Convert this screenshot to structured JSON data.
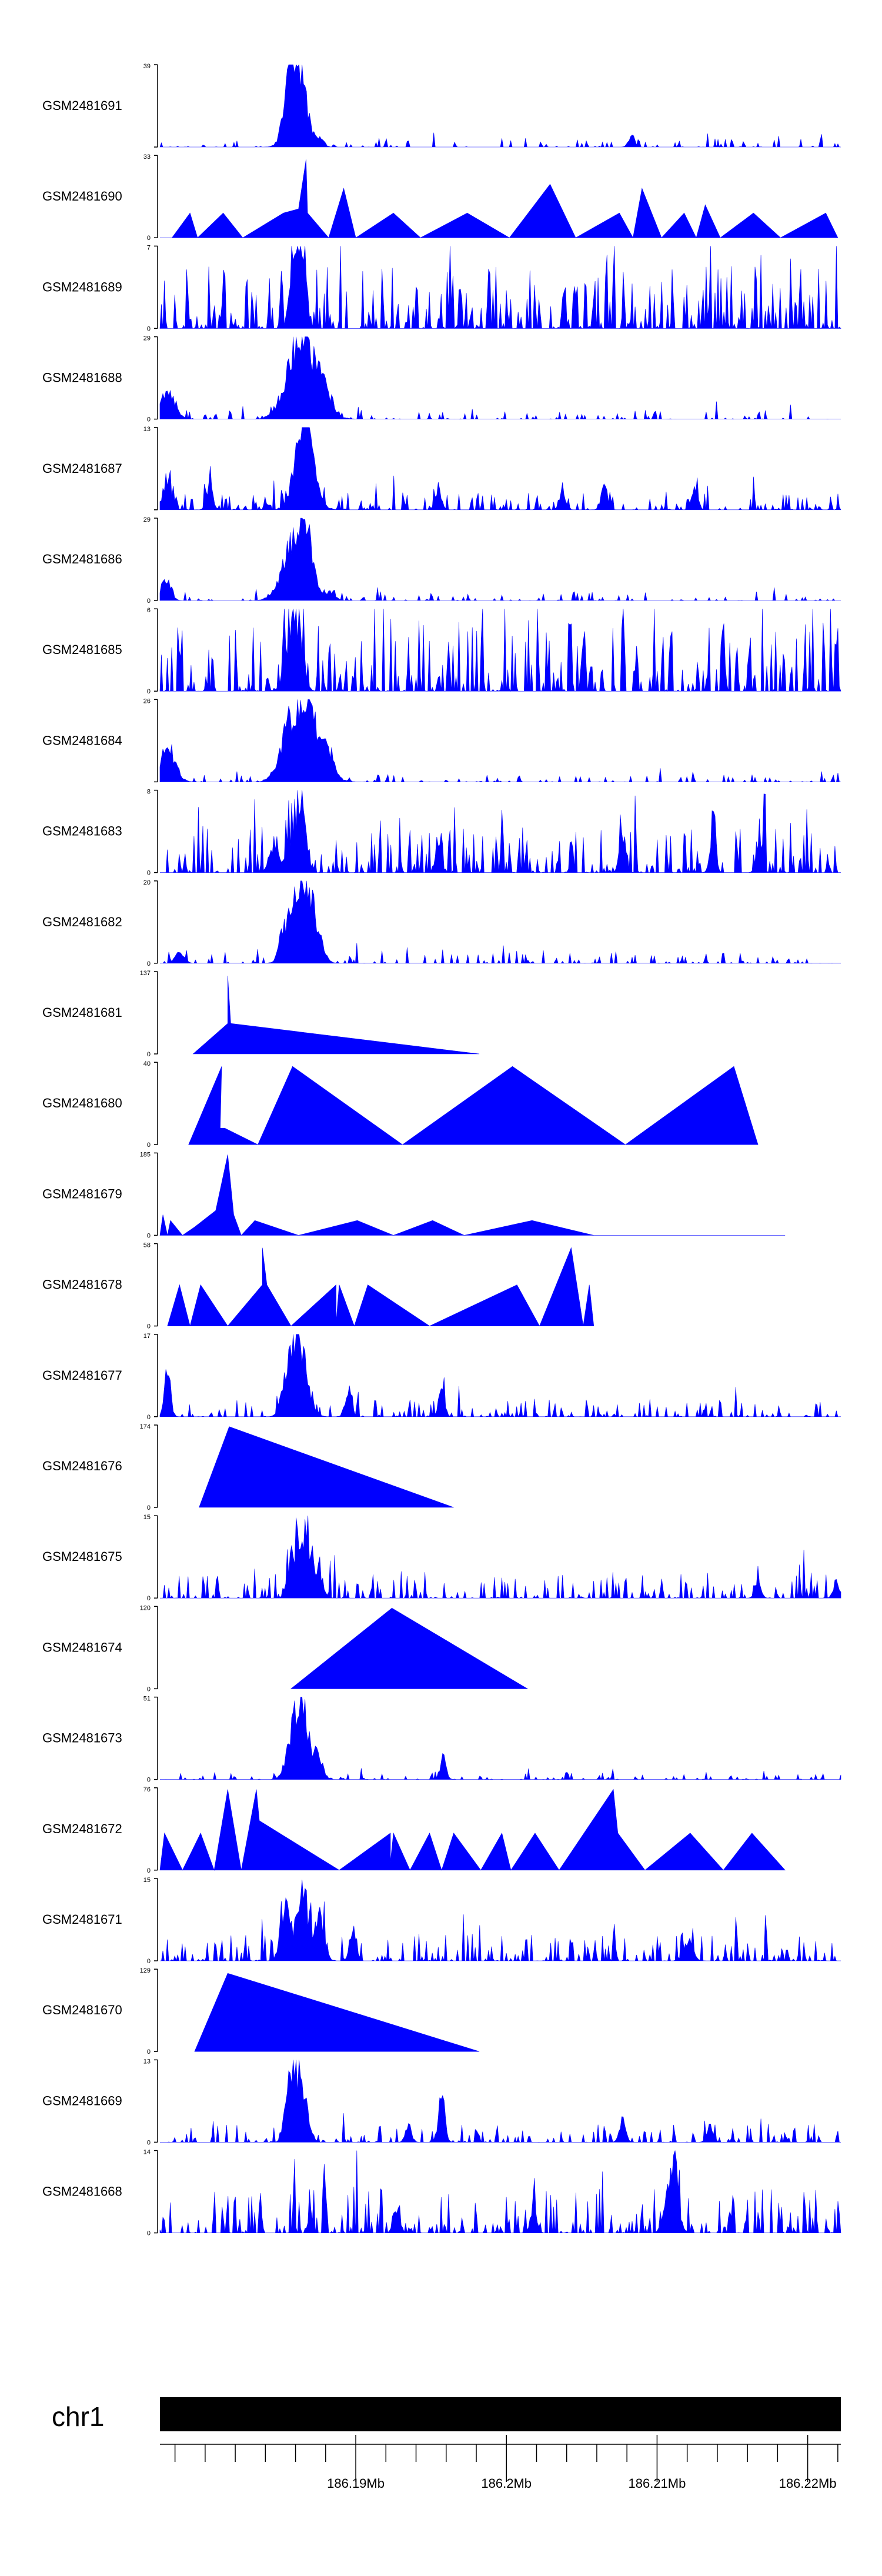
{
  "chart_data": {
    "type": "area",
    "title": "",
    "color": "#0000ff",
    "chromosome": "chr1",
    "x_unit": "Mb",
    "xlim": [
      186.177,
      186.2222
    ],
    "x_ticks": [
      {
        "value": 186.19,
        "label": "186.19Mb"
      },
      {
        "value": 186.2,
        "label": "186.2Mb"
      },
      {
        "value": 186.21,
        "label": "186.21Mb"
      },
      {
        "value": 186.22,
        "label": "186.22Mb"
      }
    ],
    "x_minor_tick_step": 0.002,
    "tracks": [
      {
        "name": "GSM2481691",
        "ymax": 39,
        "ymin_label": "",
        "style": "signal",
        "seed": 11,
        "noise": 0.05,
        "density": 0.22,
        "peaks": [
          [
            186.1859,
            1.0,
            0.0005
          ],
          [
            186.1863,
            0.55,
            0.0006
          ],
          [
            186.1855,
            0.3,
            0.0003
          ],
          [
            186.1877,
            0.12,
            0.0002
          ],
          [
            186.2083,
            0.18,
            0.0002
          ]
        ]
      },
      {
        "name": "GSM2481690",
        "ymax": 33,
        "ymin_label": "0",
        "style": "tri",
        "seed": 12,
        "points": [
          [
            186.177,
            0
          ],
          [
            186.1778,
            0
          ],
          [
            186.179,
            0.3
          ],
          [
            186.1795,
            0
          ],
          [
            186.1812,
            0.3
          ],
          [
            186.1825,
            0
          ],
          [
            186.1852,
            0.3
          ],
          [
            186.1862,
            0.35
          ],
          [
            186.1867,
            0.95
          ],
          [
            186.1868,
            0.3
          ],
          [
            186.1882,
            0
          ],
          [
            186.1892,
            0.6
          ],
          [
            186.19,
            0
          ],
          [
            186.1925,
            0.3
          ],
          [
            186.1943,
            0
          ],
          [
            186.1974,
            0.3
          ],
          [
            186.2002,
            0
          ],
          [
            186.2029,
            0.65
          ],
          [
            186.2046,
            0
          ],
          [
            186.2075,
            0.3
          ],
          [
            186.2084,
            0
          ],
          [
            186.209,
            0.6
          ],
          [
            186.2103,
            0
          ],
          [
            186.2118,
            0.3
          ],
          [
            186.2126,
            0
          ],
          [
            186.2132,
            0.4
          ],
          [
            186.2142,
            0
          ],
          [
            186.2164,
            0.3
          ],
          [
            186.2182,
            0
          ],
          [
            186.2212,
            0.3
          ],
          [
            186.222,
            0
          ]
        ]
      },
      {
        "name": "GSM2481689",
        "ymax": 7,
        "ymin_label": "0",
        "style": "signal",
        "seed": 13,
        "noise": 0.35,
        "density": 0.6,
        "peaks": [
          [
            186.1862,
            0.95,
            0.0002
          ],
          [
            186.1866,
            0.8,
            0.0002
          ],
          [
            186.1857,
            0.7,
            0.0002
          ]
        ]
      },
      {
        "name": "GSM2481688",
        "ymax": 29,
        "ymin_label": "0",
        "style": "signal",
        "seed": 14,
        "noise": 0.05,
        "density": 0.25,
        "peaks": [
          [
            186.1861,
            1.0,
            0.0008
          ],
          [
            186.1872,
            0.6,
            0.0008
          ],
          [
            186.1775,
            0.45,
            0.0005
          ],
          [
            186.1883,
            0.1,
            0.0003
          ]
        ]
      },
      {
        "name": "GSM2481687",
        "ymax": 13,
        "ymin_label": "",
        "style": "signal",
        "seed": 15,
        "noise": 0.1,
        "density": 0.4,
        "peaks": [
          [
            186.1864,
            1.0,
            0.0005
          ],
          [
            186.1868,
            0.55,
            0.0006
          ],
          [
            186.1775,
            0.45,
            0.0003
          ],
          [
            186.1803,
            0.35,
            0.0002
          ],
          [
            186.1955,
            0.3,
            0.0002
          ],
          [
            186.2037,
            0.3,
            0.0002
          ],
          [
            186.2065,
            0.35,
            0.0002
          ],
          [
            186.2125,
            0.3,
            0.0002
          ]
        ]
      },
      {
        "name": "GSM2481686",
        "ymax": 29,
        "ymin_label": "0",
        "style": "signal",
        "seed": 16,
        "noise": 0.05,
        "density": 0.25,
        "peaks": [
          [
            186.1866,
            1.0,
            0.0005
          ],
          [
            186.1857,
            0.7,
            0.0007
          ],
          [
            186.1774,
            0.35,
            0.0003
          ],
          [
            186.1883,
            0.15,
            0.0003
          ]
        ]
      },
      {
        "name": "GSM2481685",
        "ymax": 6,
        "ymin_label": "0",
        "style": "signal",
        "seed": 17,
        "noise": 0.4,
        "density": 0.55,
        "peaks": [
          [
            186.1857,
            0.85,
            0.0004
          ],
          [
            186.1863,
            0.7,
            0.0003
          ]
        ]
      },
      {
        "name": "GSM2481684",
        "ymax": 26,
        "ymin_label": "",
        "style": "signal",
        "seed": 18,
        "noise": 0.04,
        "density": 0.25,
        "peaks": [
          [
            186.1868,
            1.0,
            0.0009
          ],
          [
            186.1855,
            0.55,
            0.0006
          ],
          [
            186.1775,
            0.5,
            0.0005
          ],
          [
            186.1883,
            0.25,
            0.0003
          ]
        ]
      },
      {
        "name": "GSM2481683",
        "ymax": 8,
        "ymin_label": "0",
        "style": "signal",
        "seed": 19,
        "noise": 0.25,
        "density": 0.5,
        "peaks": [
          [
            186.1865,
            1.0,
            0.0002
          ],
          [
            186.1858,
            0.6,
            0.0004
          ],
          [
            186.1845,
            0.35,
            0.0003
          ],
          [
            186.1955,
            0.4,
            0.0002
          ],
          [
            186.2077,
            0.6,
            0.0002
          ],
          [
            186.2137,
            0.45,
            0.0002
          ],
          [
            186.2168,
            0.45,
            0.0002
          ]
        ]
      },
      {
        "name": "GSM2481682",
        "ymax": 20,
        "ymin_label": "0",
        "style": "signal",
        "seed": 20,
        "noise": 0.06,
        "density": 0.3,
        "peaks": [
          [
            186.1862,
            1.0,
            0.0006
          ],
          [
            186.1871,
            0.65,
            0.0005
          ],
          [
            186.1852,
            0.3,
            0.0003
          ],
          [
            186.1783,
            0.15,
            0.0003
          ]
        ]
      },
      {
        "name": "GSM2481681",
        "ymax": 137,
        "ymin_label": "0",
        "style": "tri",
        "seed": 21,
        "points": [
          [
            186.1792,
            0
          ],
          [
            186.1815,
            0.37
          ],
          [
            186.1815,
            0.95
          ],
          [
            186.1817,
            0.37
          ],
          [
            186.1982,
            0
          ],
          [
            186.1982,
            0
          ]
        ]
      },
      {
        "name": "GSM2481680",
        "ymax": 40,
        "ymin_label": "0",
        "style": "tri",
        "seed": 22,
        "points": [
          [
            186.1789,
            0
          ],
          [
            186.1811,
            0.95
          ],
          [
            186.181,
            0.2
          ],
          [
            186.1813,
            0.2
          ],
          [
            186.1835,
            0
          ],
          [
            186.1858,
            0.95
          ],
          [
            186.1931,
            0
          ],
          [
            186.2004,
            0.95
          ],
          [
            186.2079,
            0
          ],
          [
            186.2151,
            0.95
          ],
          [
            186.2167,
            0
          ]
        ]
      },
      {
        "name": "GSM2481679",
        "ymax": 185,
        "ymin_label": "0",
        "style": "tri",
        "seed": 23,
        "points": [
          [
            186.177,
            0
          ],
          [
            186.1772,
            0.25
          ],
          [
            186.1775,
            0
          ],
          [
            186.1777,
            0.18
          ],
          [
            186.1785,
            0
          ],
          [
            186.1793,
            0.1
          ],
          [
            186.1807,
            0.3
          ],
          [
            186.1815,
            0.98
          ],
          [
            186.1819,
            0.25
          ],
          [
            186.1824,
            0
          ],
          [
            186.1833,
            0.18
          ],
          [
            186.1862,
            0
          ],
          [
            186.1901,
            0.18
          ],
          [
            186.1925,
            0
          ],
          [
            186.1951,
            0.18
          ],
          [
            186.1972,
            0
          ],
          [
            186.2017,
            0.18
          ],
          [
            186.2058,
            0
          ],
          [
            186.2185,
            0
          ]
        ]
      },
      {
        "name": "GSM2481678",
        "ymax": 58,
        "ymin_label": "0",
        "style": "tri",
        "seed": 24,
        "points": [
          [
            186.1775,
            0
          ],
          [
            186.1783,
            0.5
          ],
          [
            186.179,
            0
          ],
          [
            186.1797,
            0.5
          ],
          [
            186.1815,
            0
          ],
          [
            186.1838,
            0.5
          ],
          [
            186.1838,
            0.95
          ],
          [
            186.1841,
            0.5
          ],
          [
            186.1857,
            0
          ],
          [
            186.1887,
            0.5
          ],
          [
            186.1887,
            0.05
          ],
          [
            186.1889,
            0.5
          ],
          [
            186.1899,
            0
          ],
          [
            186.1908,
            0.5
          ],
          [
            186.1949,
            0
          ],
          [
            186.2007,
            0.5
          ],
          [
            186.2022,
            0
          ],
          [
            186.2043,
            0.95
          ],
          [
            186.2051,
            0
          ],
          [
            186.2055,
            0.5
          ],
          [
            186.2058,
            0
          ]
        ]
      },
      {
        "name": "GSM2481677",
        "ymax": 17,
        "ymin_label": "0",
        "style": "signal",
        "seed": 25,
        "noise": 0.1,
        "density": 0.35,
        "peaks": [
          [
            186.1863,
            1.0,
            0.0005
          ],
          [
            186.1856,
            0.7,
            0.0004
          ],
          [
            186.1775,
            0.7,
            0.0002
          ],
          [
            186.1895,
            0.45,
            0.0002
          ],
          [
            186.1957,
            0.4,
            0.0002
          ]
        ]
      },
      {
        "name": "GSM2481676",
        "ymax": 174,
        "ymin_label": "0",
        "style": "tri",
        "seed": 26,
        "points": [
          [
            186.1796,
            0
          ],
          [
            186.1816,
            0.98
          ],
          [
            186.1965,
            0
          ],
          [
            186.1965,
            0
          ]
        ]
      },
      {
        "name": "GSM2481675",
        "ymax": 15,
        "ymin_label": "0",
        "style": "signal",
        "seed": 27,
        "noise": 0.15,
        "density": 0.4,
        "peaks": [
          [
            186.1866,
            1.0,
            0.0004
          ],
          [
            186.1858,
            0.55,
            0.0003
          ],
          [
            186.1875,
            0.35,
            0.0003
          ],
          [
            186.2167,
            0.25,
            0.0002
          ],
          [
            186.2219,
            0.25,
            0.0002
          ]
        ]
      },
      {
        "name": "GSM2481674",
        "ymax": 120,
        "ymin_label": "0",
        "style": "tri",
        "seed": 28,
        "points": [
          [
            186.1857,
            0
          ],
          [
            186.1924,
            0.98
          ],
          [
            186.2014,
            0
          ],
          [
            186.2014,
            0
          ]
        ]
      },
      {
        "name": "GSM2481673",
        "ymax": 51,
        "ymin_label": "0",
        "style": "signal",
        "seed": 29,
        "noise": 0.04,
        "density": 0.25,
        "peaks": [
          [
            186.1865,
            1.0,
            0.0004
          ],
          [
            186.1858,
            0.7,
            0.0004
          ],
          [
            186.1875,
            0.35,
            0.0003
          ],
          [
            186.1958,
            0.35,
            0.0002
          ]
        ]
      },
      {
        "name": "GSM2481672",
        "ymax": 76,
        "ymin_label": "0",
        "style": "tri",
        "seed": 30,
        "points": [
          [
            186.177,
            0
          ],
          [
            186.1773,
            0.45
          ],
          [
            186.1785,
            0
          ],
          [
            186.1797,
            0.45
          ],
          [
            186.1806,
            0
          ],
          [
            186.1815,
            0.98
          ],
          [
            186.1824,
            0
          ],
          [
            186.1834,
            0.98
          ],
          [
            186.1836,
            0.6
          ],
          [
            186.1889,
            0
          ],
          [
            186.1923,
            0.45
          ],
          [
            186.1923,
            0.1
          ],
          [
            186.1925,
            0.45
          ],
          [
            186.1936,
            0
          ],
          [
            186.1949,
            0.45
          ],
          [
            186.1957,
            0
          ],
          [
            186.1965,
            0.45
          ],
          [
            186.1983,
            0
          ],
          [
            186.1997,
            0.45
          ],
          [
            186.2003,
            0
          ],
          [
            186.2019,
            0.45
          ],
          [
            186.2035,
            0
          ],
          [
            186.2071,
            0.98
          ],
          [
            186.2074,
            0.45
          ],
          [
            186.2092,
            0
          ],
          [
            186.2122,
            0.45
          ],
          [
            186.2144,
            0
          ],
          [
            186.2163,
            0.45
          ],
          [
            186.2185,
            0
          ]
        ]
      },
      {
        "name": "GSM2481671",
        "ymax": 15,
        "ymin_label": "0",
        "style": "signal",
        "seed": 31,
        "noise": 0.15,
        "density": 0.45,
        "peaks": [
          [
            186.1865,
            1.0,
            0.0004
          ],
          [
            186.1853,
            0.85,
            0.0003
          ],
          [
            186.1876,
            0.7,
            0.0003
          ],
          [
            186.1898,
            0.5,
            0.0002
          ],
          [
            186.2121,
            0.3,
            0.0003
          ]
        ]
      },
      {
        "name": "GSM2481670",
        "ymax": 129,
        "ymin_label": "0",
        "style": "tri",
        "seed": 32,
        "points": [
          [
            186.1793,
            0
          ],
          [
            186.1815,
            0.95
          ],
          [
            186.1982,
            0
          ],
          [
            186.1982,
            0
          ]
        ]
      },
      {
        "name": "GSM2481669",
        "ymax": 13,
        "ymin_label": "0",
        "style": "signal",
        "seed": 33,
        "noise": 0.1,
        "density": 0.35,
        "peaks": [
          [
            186.1863,
            1.0,
            0.0004
          ],
          [
            186.1856,
            0.75,
            0.0003
          ],
          [
            186.1957,
            0.75,
            0.0002
          ],
          [
            186.1935,
            0.25,
            0.0002
          ],
          [
            186.2077,
            0.35,
            0.0002
          ],
          [
            186.2135,
            0.25,
            0.0002
          ]
        ]
      },
      {
        "name": "GSM2481668",
        "ymax": 14,
        "ymin_label": "0",
        "style": "signal",
        "seed": 34,
        "noise": 0.25,
        "density": 0.5,
        "peaks": [
          [
            186.2111,
            0.95,
            0.0003
          ],
          [
            186.2107,
            0.4,
            0.0003
          ],
          [
            186.2018,
            0.45,
            0.0002
          ],
          [
            186.1927,
            0.4,
            0.0002
          ]
        ]
      }
    ]
  }
}
